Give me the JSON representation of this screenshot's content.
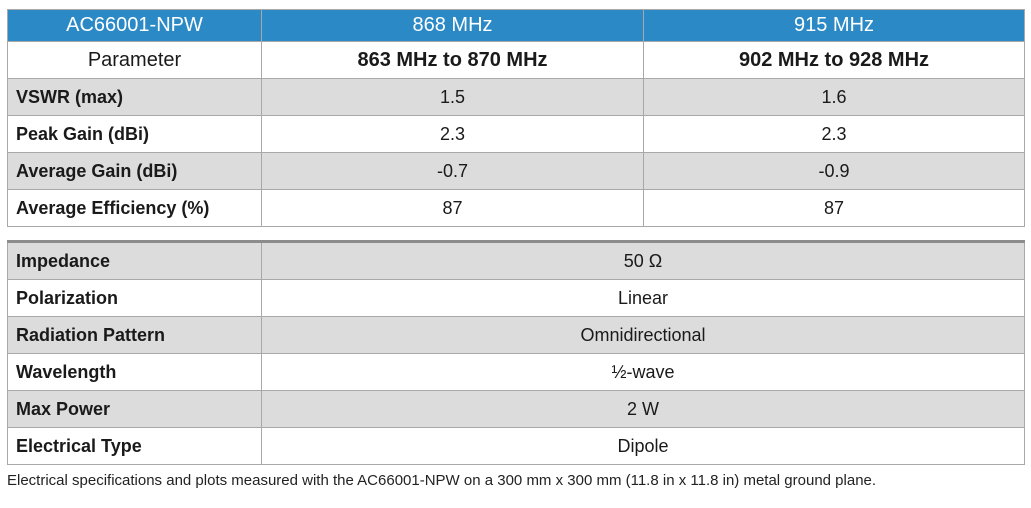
{
  "table1": {
    "header": {
      "model": "AC66001-NPW",
      "band1": "868 MHz",
      "band2": "915 MHz"
    },
    "subheader": {
      "param": "Parameter",
      "range1": "863 MHz to 870 MHz",
      "range2": "902 MHz to 928 MHz"
    },
    "rows": [
      {
        "label": "VSWR (max)",
        "v1": "1.5",
        "v2": "1.6"
      },
      {
        "label": "Peak Gain (dBi)",
        "v1": "2.3",
        "v2": "2.3"
      },
      {
        "label": "Average Gain (dBi)",
        "v1": "-0.7",
        "v2": "-0.9"
      },
      {
        "label": "Average Efficiency (%)",
        "v1": "87",
        "v2": "87"
      }
    ]
  },
  "table2": {
    "rows": [
      {
        "label": "Impedance",
        "value": "50 Ω"
      },
      {
        "label": "Polarization",
        "value": "Linear"
      },
      {
        "label": "Radiation Pattern",
        "value": "Omnidirectional"
      },
      {
        "label": "Wavelength",
        "value": "½-wave"
      },
      {
        "label": "Max Power",
        "value": "2 W"
      },
      {
        "label": "Electrical Type",
        "value": "Dipole"
      }
    ]
  },
  "footnote": "Electrical specifications and plots measured with the AC66001-NPW on a 300 mm x 300 mm (11.8 in x 11.8 in) metal ground plane.",
  "colors": {
    "header_blue": "#2b8ac6",
    "row_shade": "#dcdcdc",
    "border": "#a8a8a8"
  }
}
